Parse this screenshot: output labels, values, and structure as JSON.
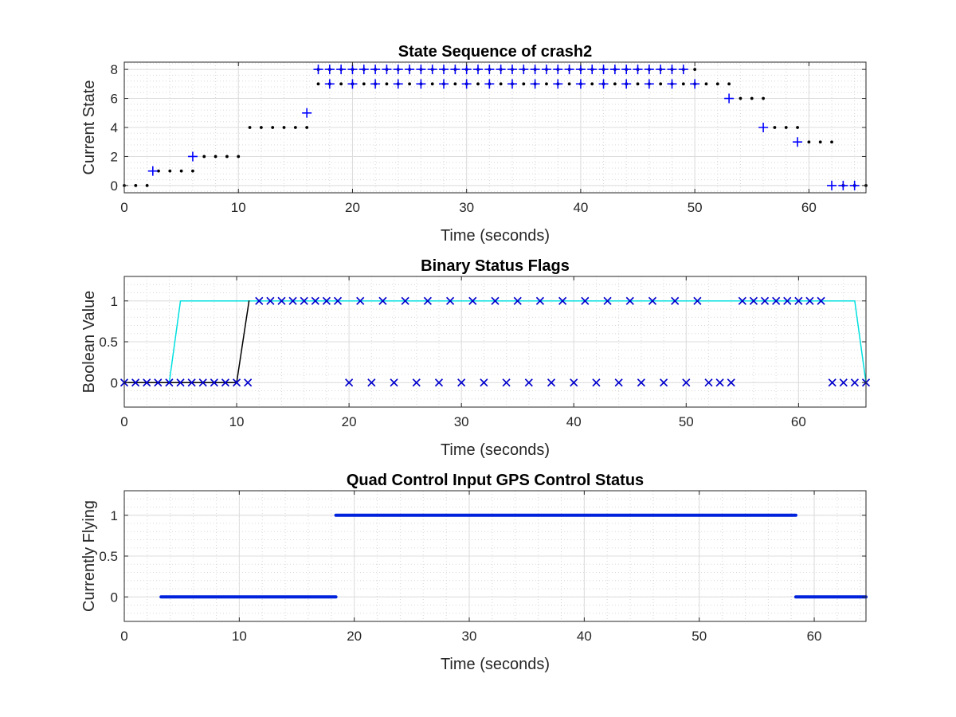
{
  "chart_data": [
    {
      "type": "scatter",
      "title": "State Sequence of crash2",
      "xlabel": "Time (seconds)",
      "ylabel": "Current State",
      "xlim": [
        0,
        65
      ],
      "ylim": [
        -0.5,
        8.5
      ],
      "xticks": [
        0,
        10,
        20,
        30,
        40,
        50,
        60
      ],
      "xticklabels": [
        "0",
        "10",
        "20",
        "30",
        "40",
        "50",
        "60"
      ],
      "yticks": [
        0,
        2,
        4,
        6,
        8
      ],
      "yticklabels": [
        "0",
        "2",
        "4",
        "6",
        "8"
      ],
      "grid": true,
      "minor_grid": true,
      "series": [
        {
          "marker": "dot",
          "color": "#000000",
          "x": [
            0,
            1,
            2,
            3,
            4,
            5,
            6,
            7,
            8,
            9,
            10,
            11,
            12,
            13,
            14,
            15,
            16,
            17,
            18,
            19,
            20,
            21,
            22,
            23,
            24,
            25,
            26,
            27,
            28,
            29,
            30,
            31,
            32,
            33,
            34,
            35,
            36,
            37,
            38,
            39,
            40,
            41,
            42,
            43,
            44,
            45,
            46,
            47,
            48,
            49,
            50,
            17,
            18,
            19,
            20,
            21,
            22,
            23,
            24,
            25,
            26,
            27,
            28,
            29,
            30,
            31,
            32,
            33,
            34,
            35,
            36,
            37,
            38,
            39,
            40,
            41,
            42,
            43,
            44,
            45,
            46,
            47,
            48,
            49,
            50,
            51,
            52,
            53,
            54,
            55,
            56,
            57,
            58,
            59,
            60,
            61,
            62,
            63,
            64,
            65
          ],
          "y": [
            0,
            0,
            0,
            1,
            1,
            1,
            1,
            2,
            2,
            2,
            2,
            4,
            4,
            4,
            4,
            4,
            4,
            8,
            8,
            8,
            8,
            8,
            8,
            8,
            8,
            8,
            8,
            8,
            8,
            8,
            8,
            8,
            8,
            8,
            8,
            8,
            8,
            8,
            8,
            8,
            8,
            8,
            8,
            8,
            8,
            8,
            8,
            8,
            8,
            8,
            8,
            7,
            7,
            7,
            7,
            7,
            7,
            7,
            7,
            7,
            7,
            7,
            7,
            7,
            7,
            7,
            7,
            7,
            7,
            7,
            7,
            7,
            7,
            7,
            7,
            7,
            7,
            7,
            7,
            7,
            7,
            7,
            7,
            7,
            7,
            7,
            7,
            7,
            6,
            6,
            6,
            4,
            4,
            4,
            3,
            3,
            3,
            0,
            0,
            0
          ]
        },
        {
          "marker": "plus",
          "color": "#0000ff",
          "x": [
            2.5,
            6,
            16,
            17,
            18,
            19,
            20,
            21,
            22,
            23,
            24,
            25,
            26,
            27,
            28,
            29,
            30,
            31,
            32,
            33,
            34,
            35,
            36,
            37,
            38,
            39,
            40,
            41,
            42,
            43,
            44,
            45,
            46,
            47,
            48,
            49,
            18,
            20,
            22,
            24,
            26,
            28,
            30,
            32,
            34,
            36,
            38,
            40,
            42,
            44,
            46,
            48,
            50,
            53,
            56,
            59,
            62,
            63,
            64
          ],
          "y": [
            1,
            2,
            5,
            8,
            8,
            8,
            8,
            8,
            8,
            8,
            8,
            8,
            8,
            8,
            8,
            8,
            8,
            8,
            8,
            8,
            8,
            8,
            8,
            8,
            8,
            8,
            8,
            8,
            8,
            8,
            8,
            8,
            8,
            8,
            8,
            8,
            7,
            7,
            7,
            7,
            7,
            7,
            7,
            7,
            7,
            7,
            7,
            7,
            7,
            7,
            7,
            7,
            7,
            6,
            4,
            3,
            0,
            0,
            0
          ]
        }
      ]
    },
    {
      "type": "line",
      "title": "Binary Status Flags",
      "xlabel": "Time (seconds)",
      "ylabel": "Boolean Value",
      "xlim": [
        0,
        66
      ],
      "ylim": [
        -0.3,
        1.3
      ],
      "xticks": [
        0,
        10,
        20,
        30,
        40,
        50,
        60
      ],
      "xticklabels": [
        "0",
        "10",
        "20",
        "30",
        "40",
        "50",
        "60"
      ],
      "yticks": [
        0,
        0.5,
        1
      ],
      "yticklabels": [
        "0",
        "0.5",
        "1"
      ],
      "grid": true,
      "minor_grid": true,
      "series": [
        {
          "marker": "line",
          "color": "#00e0e0",
          "x": [
            0,
            4,
            5,
            65,
            66
          ],
          "y": [
            0,
            0,
            1,
            1,
            0
          ]
        },
        {
          "marker": "line",
          "color": "#000000",
          "x": [
            0,
            10,
            11.1
          ],
          "y": [
            0,
            0,
            1
          ]
        },
        {
          "marker": "x",
          "color": "#0000cc",
          "x": [
            0,
            1,
            2,
            3,
            4,
            5,
            6,
            7,
            8,
            9,
            10,
            11,
            20,
            22,
            24,
            26,
            28,
            30,
            32,
            34,
            36,
            38,
            40,
            42,
            44,
            46,
            48,
            50,
            52,
            53,
            54,
            63,
            64,
            65,
            66,
            12,
            13,
            14,
            15,
            16,
            17,
            18,
            19,
            21,
            23,
            25,
            27,
            29,
            31,
            33,
            35,
            37,
            39,
            41,
            43,
            45,
            47,
            49,
            51,
            55,
            56,
            57,
            58,
            59,
            60,
            61,
            62
          ],
          "y": [
            0,
            0,
            0,
            0,
            0,
            0,
            0,
            0,
            0,
            0,
            0,
            0,
            0,
            0,
            0,
            0,
            0,
            0,
            0,
            0,
            0,
            0,
            0,
            0,
            0,
            0,
            0,
            0,
            0,
            0,
            0,
            0,
            0,
            0,
            0,
            1,
            1,
            1,
            1,
            1,
            1,
            1,
            1,
            1,
            1,
            1,
            1,
            1,
            1,
            1,
            1,
            1,
            1,
            1,
            1,
            1,
            1,
            1,
            1,
            1,
            1,
            1,
            1,
            1,
            1,
            1,
            1
          ]
        }
      ]
    },
    {
      "type": "line",
      "title": "Quad Control Input GPS Control Status",
      "xlabel": "Time (seconds)",
      "ylabel": "Currently Flying",
      "xlim": [
        0,
        64.5
      ],
      "ylim": [
        -0.3,
        1.3
      ],
      "xticks": [
        0,
        10,
        20,
        30,
        40,
        50,
        60
      ],
      "xticklabels": [
        "0",
        "10",
        "20",
        "30",
        "40",
        "50",
        "60"
      ],
      "yticks": [
        0,
        0.5,
        1
      ],
      "yticklabels": [
        "0",
        "0.5",
        "1"
      ],
      "grid": true,
      "minor_grid": true,
      "series": [
        {
          "marker": "thick-line",
          "color": "#0022dd",
          "x": [
            3.2,
            18.4
          ],
          "y": [
            0,
            0
          ]
        },
        {
          "marker": "thick-line",
          "color": "#0022dd",
          "x": [
            18.4,
            58.4
          ],
          "y": [
            1,
            1
          ]
        },
        {
          "marker": "thick-line",
          "color": "#0022dd",
          "x": [
            58.4,
            64.5
          ],
          "y": [
            0,
            0
          ]
        }
      ]
    }
  ]
}
